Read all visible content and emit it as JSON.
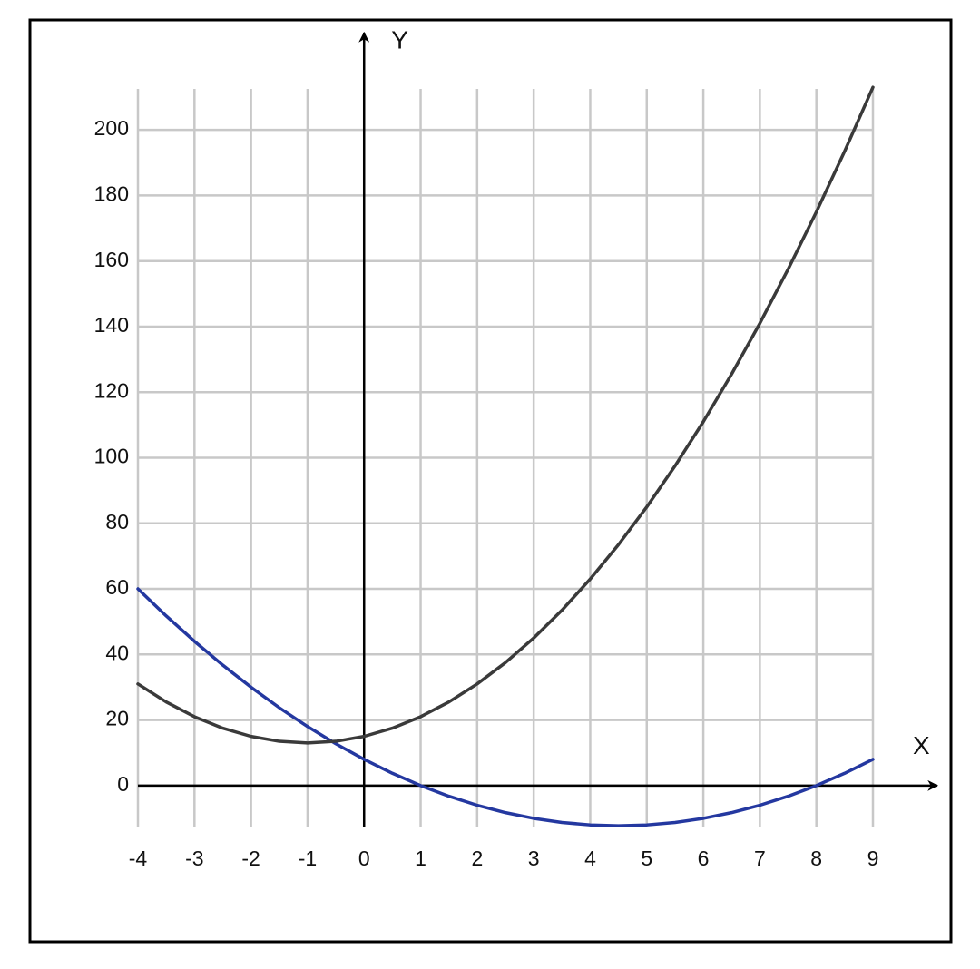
{
  "chart_data": {
    "type": "line",
    "x_label": "X",
    "y_label": "Y",
    "x": [
      -4,
      -3.5,
      -3,
      -2.5,
      -2,
      -1.5,
      -1,
      -0.5,
      0,
      0.5,
      1,
      1.5,
      2,
      2.5,
      3,
      3.5,
      4,
      4.5,
      5,
      5.5,
      6,
      6.5,
      7,
      7.5,
      8,
      8.5,
      9
    ],
    "series": [
      {
        "color": "#2438a0",
        "values": [
          60,
          51.75,
          44,
          36.75,
          30,
          23.75,
          18,
          12.75,
          8,
          3.75,
          0,
          -3.25,
          -6,
          -8.25,
          -10,
          -11.25,
          -12,
          -12.25,
          -12,
          -11.25,
          -10,
          -8.25,
          -6,
          -3.25,
          0,
          3.75,
          8
        ]
      },
      {
        "color": "#3a3a3a",
        "values": [
          31,
          25.5,
          21,
          17.5,
          15,
          13.5,
          13,
          13.5,
          15,
          17.5,
          21,
          25.5,
          31,
          37.5,
          45,
          53.5,
          63,
          73.5,
          85,
          97.5,
          111,
          125.5,
          141,
          157.5,
          175,
          193.5,
          213
        ]
      }
    ],
    "xlim": [
      -4,
      9
    ],
    "xticks": [
      -4,
      -3,
      -2,
      -1,
      0,
      1,
      2,
      3,
      4,
      5,
      6,
      7,
      8,
      9
    ],
    "ylim": [
      -12.5,
      212.5
    ],
    "yticks": [
      0,
      20,
      40,
      60,
      80,
      100,
      120,
      140,
      160,
      180,
      200
    ],
    "grid": true
  }
}
